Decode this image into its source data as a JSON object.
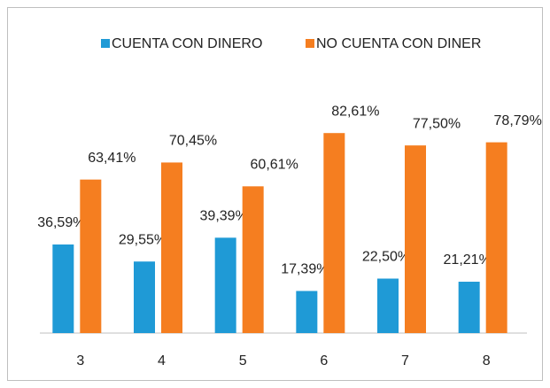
{
  "chart_data": {
    "type": "bar",
    "categories": [
      "3",
      "4",
      "5",
      "6",
      "7",
      "8"
    ],
    "series": [
      {
        "name": "CUENTA CON DINERO",
        "color": "#1f9ad6",
        "values": [
          36.59,
          29.55,
          39.39,
          17.39,
          22.5,
          21.21
        ],
        "value_labels": [
          "36,59%",
          "29,55%",
          "39,39%",
          "17,39%",
          "22,50%",
          "21,21%"
        ]
      },
      {
        "name": "NO CUENTA CON DINER",
        "color": "#f57e20",
        "values": [
          63.41,
          70.45,
          60.61,
          82.61,
          77.5,
          78.79
        ],
        "value_labels": [
          "63,41%",
          "70,45%",
          "60,61%",
          "82,61%",
          "77,50%",
          "78,79%"
        ]
      }
    ],
    "ylim": [
      0,
      90
    ],
    "legend": "top"
  }
}
